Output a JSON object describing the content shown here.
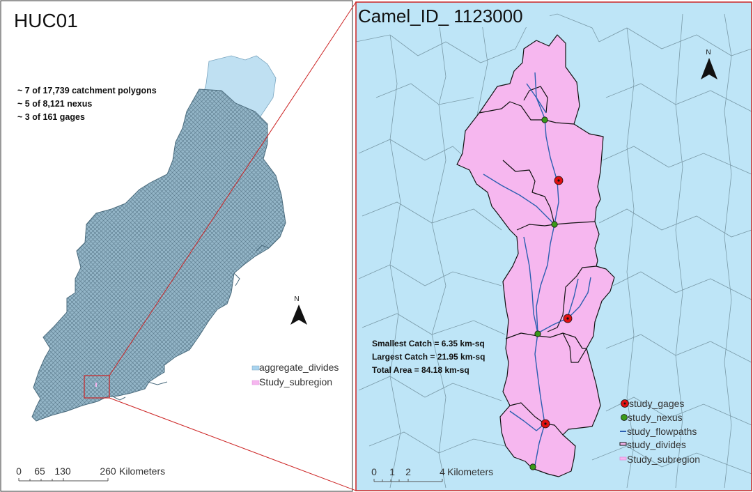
{
  "left_panel": {
    "title": "HUC01",
    "stats": [
      "~ 7 of 17,739 catchment polygons",
      "~ 5 of 8,121  nexus",
      "~ 3 of 161  gages"
    ],
    "north_label": "N",
    "legend": [
      {
        "label": "aggregate_divides",
        "swatch": "#a9d4ef"
      },
      {
        "label": "Study_subregion",
        "swatch": "#f6b7ef"
      }
    ],
    "scale_ticks": [
      "0",
      "65",
      "130",
      "260"
    ],
    "scale_unit": "Kilometers"
  },
  "right_panel": {
    "title": "Camel_ID_ 1123000",
    "stats": [
      "Smallest Catch = 6.35 km-sq",
      "Largest Catch = 21.95 km-sq",
      "Total Area = 84.18 km-sq"
    ],
    "north_label": "N",
    "legend": [
      {
        "label": "study_gages",
        "symbol": "gage"
      },
      {
        "label": "study_nexus",
        "symbol": "nexus"
      },
      {
        "label": "study_flowpaths",
        "symbol": "flowpath"
      },
      {
        "label": "study_divides",
        "symbol": "divide"
      },
      {
        "label": "Study_subregion",
        "symbol": "subregion"
      }
    ],
    "scale_ticks": [
      "0",
      "1",
      "2",
      "4"
    ],
    "scale_unit": "Kilometers"
  },
  "colors": {
    "water": "#bee5f7",
    "huc_fill": "#8fb3c6",
    "huc_light": "#bfe0f2",
    "subregion": "#f6b7ef",
    "divide_line": "#111111",
    "flowpath": "#2b5fb0",
    "gage": "#e01010",
    "nexus": "#3a9a1a",
    "connector": "#cc2222"
  }
}
